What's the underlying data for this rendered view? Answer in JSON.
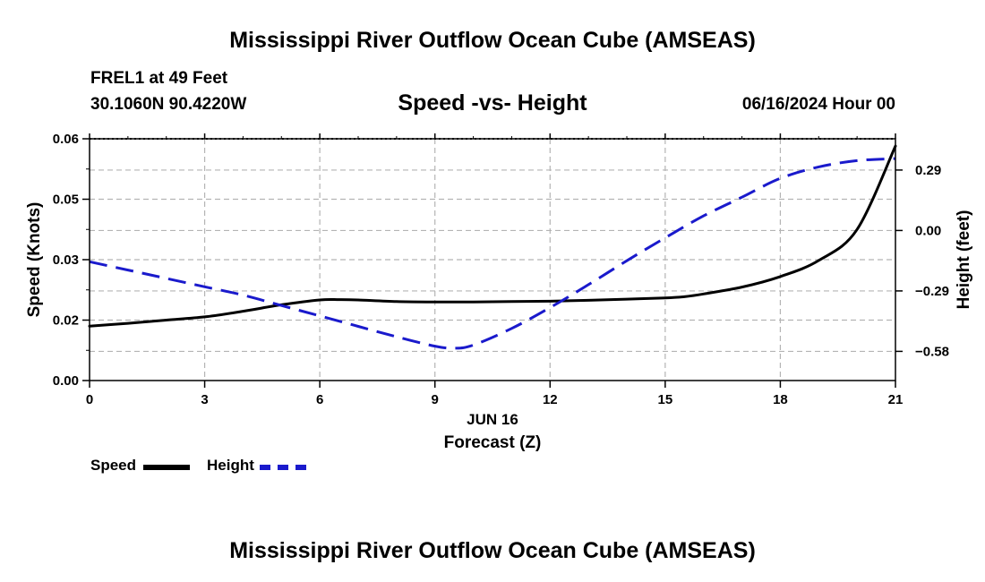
{
  "header": {
    "title": "Mississippi River Outflow Ocean Cube (AMSEAS)",
    "station_line1": "FREL1 at 49 Feet",
    "station_line2": "30.1060N  90.4220W",
    "subtitle": "Speed -vs- Height",
    "datetime": "06/16/2024 Hour 00"
  },
  "footer": {
    "title": "Mississippi River Outflow Ocean Cube (AMSEAS)"
  },
  "legend": {
    "speed_label": "Speed",
    "height_label": "Height"
  },
  "colors": {
    "speed": "#000000",
    "height": "#1a1acc",
    "grid": "#b4b4b4"
  },
  "chart_data": {
    "type": "line",
    "title": "Speed -vs- Height",
    "xlabel": "Forecast (Z)",
    "xlabel_date": "JUN 16",
    "ylabel_left": "Speed (Knots)",
    "ylabel_right": "Height (feet)",
    "xlim": [
      0,
      21
    ],
    "ylim_left": [
      0,
      0.06
    ],
    "ylim_right": [
      -0.72,
      0.44
    ],
    "x_ticks": [
      0,
      3,
      6,
      9,
      12,
      15,
      18,
      21
    ],
    "x_tick_labels": [
      "0",
      "3",
      "6",
      "9",
      "12",
      "15",
      "18",
      "21"
    ],
    "y_left_ticks": [
      0,
      0.015,
      0.03,
      0.045,
      0.06
    ],
    "y_left_tick_labels": [
      "0.00",
      "0.02",
      "0.03",
      "0.05",
      "0.06"
    ],
    "y_right_ticks": [
      -0.58,
      -0.29,
      0.0,
      0.29
    ],
    "y_right_tick_labels": [
      "-0.58",
      "-0.29",
      "0.00",
      "0.29"
    ],
    "grid": true,
    "series": [
      {
        "name": "Speed",
        "axis": "left",
        "style": "solid",
        "x": [
          0,
          1,
          2,
          3,
          4,
          5,
          6,
          6.5,
          7,
          8,
          9,
          10,
          11,
          12,
          13,
          14,
          15,
          15.5,
          16,
          17,
          18,
          19,
          20,
          21
        ],
        "values": [
          0.0135,
          0.0142,
          0.015,
          0.0158,
          0.0172,
          0.0188,
          0.02,
          0.0201,
          0.02,
          0.0196,
          0.0195,
          0.0195,
          0.0196,
          0.0197,
          0.0199,
          0.0202,
          0.0205,
          0.0208,
          0.0215,
          0.0232,
          0.0258,
          0.0298,
          0.0375,
          0.0582
        ]
      },
      {
        "name": "Height",
        "axis": "right",
        "style": "dashed",
        "x": [
          0,
          1,
          2,
          3,
          4,
          5,
          6,
          7,
          8,
          9,
          9.5,
          10,
          11,
          12,
          13,
          14,
          15,
          16,
          17,
          18,
          19,
          20,
          21
        ],
        "values": [
          -0.15,
          -0.19,
          -0.23,
          -0.27,
          -0.31,
          -0.36,
          -0.41,
          -0.46,
          -0.51,
          -0.555,
          -0.565,
          -0.55,
          -0.47,
          -0.37,
          -0.26,
          -0.145,
          -0.035,
          0.07,
          0.16,
          0.25,
          0.305,
          0.335,
          0.345
        ]
      }
    ]
  }
}
